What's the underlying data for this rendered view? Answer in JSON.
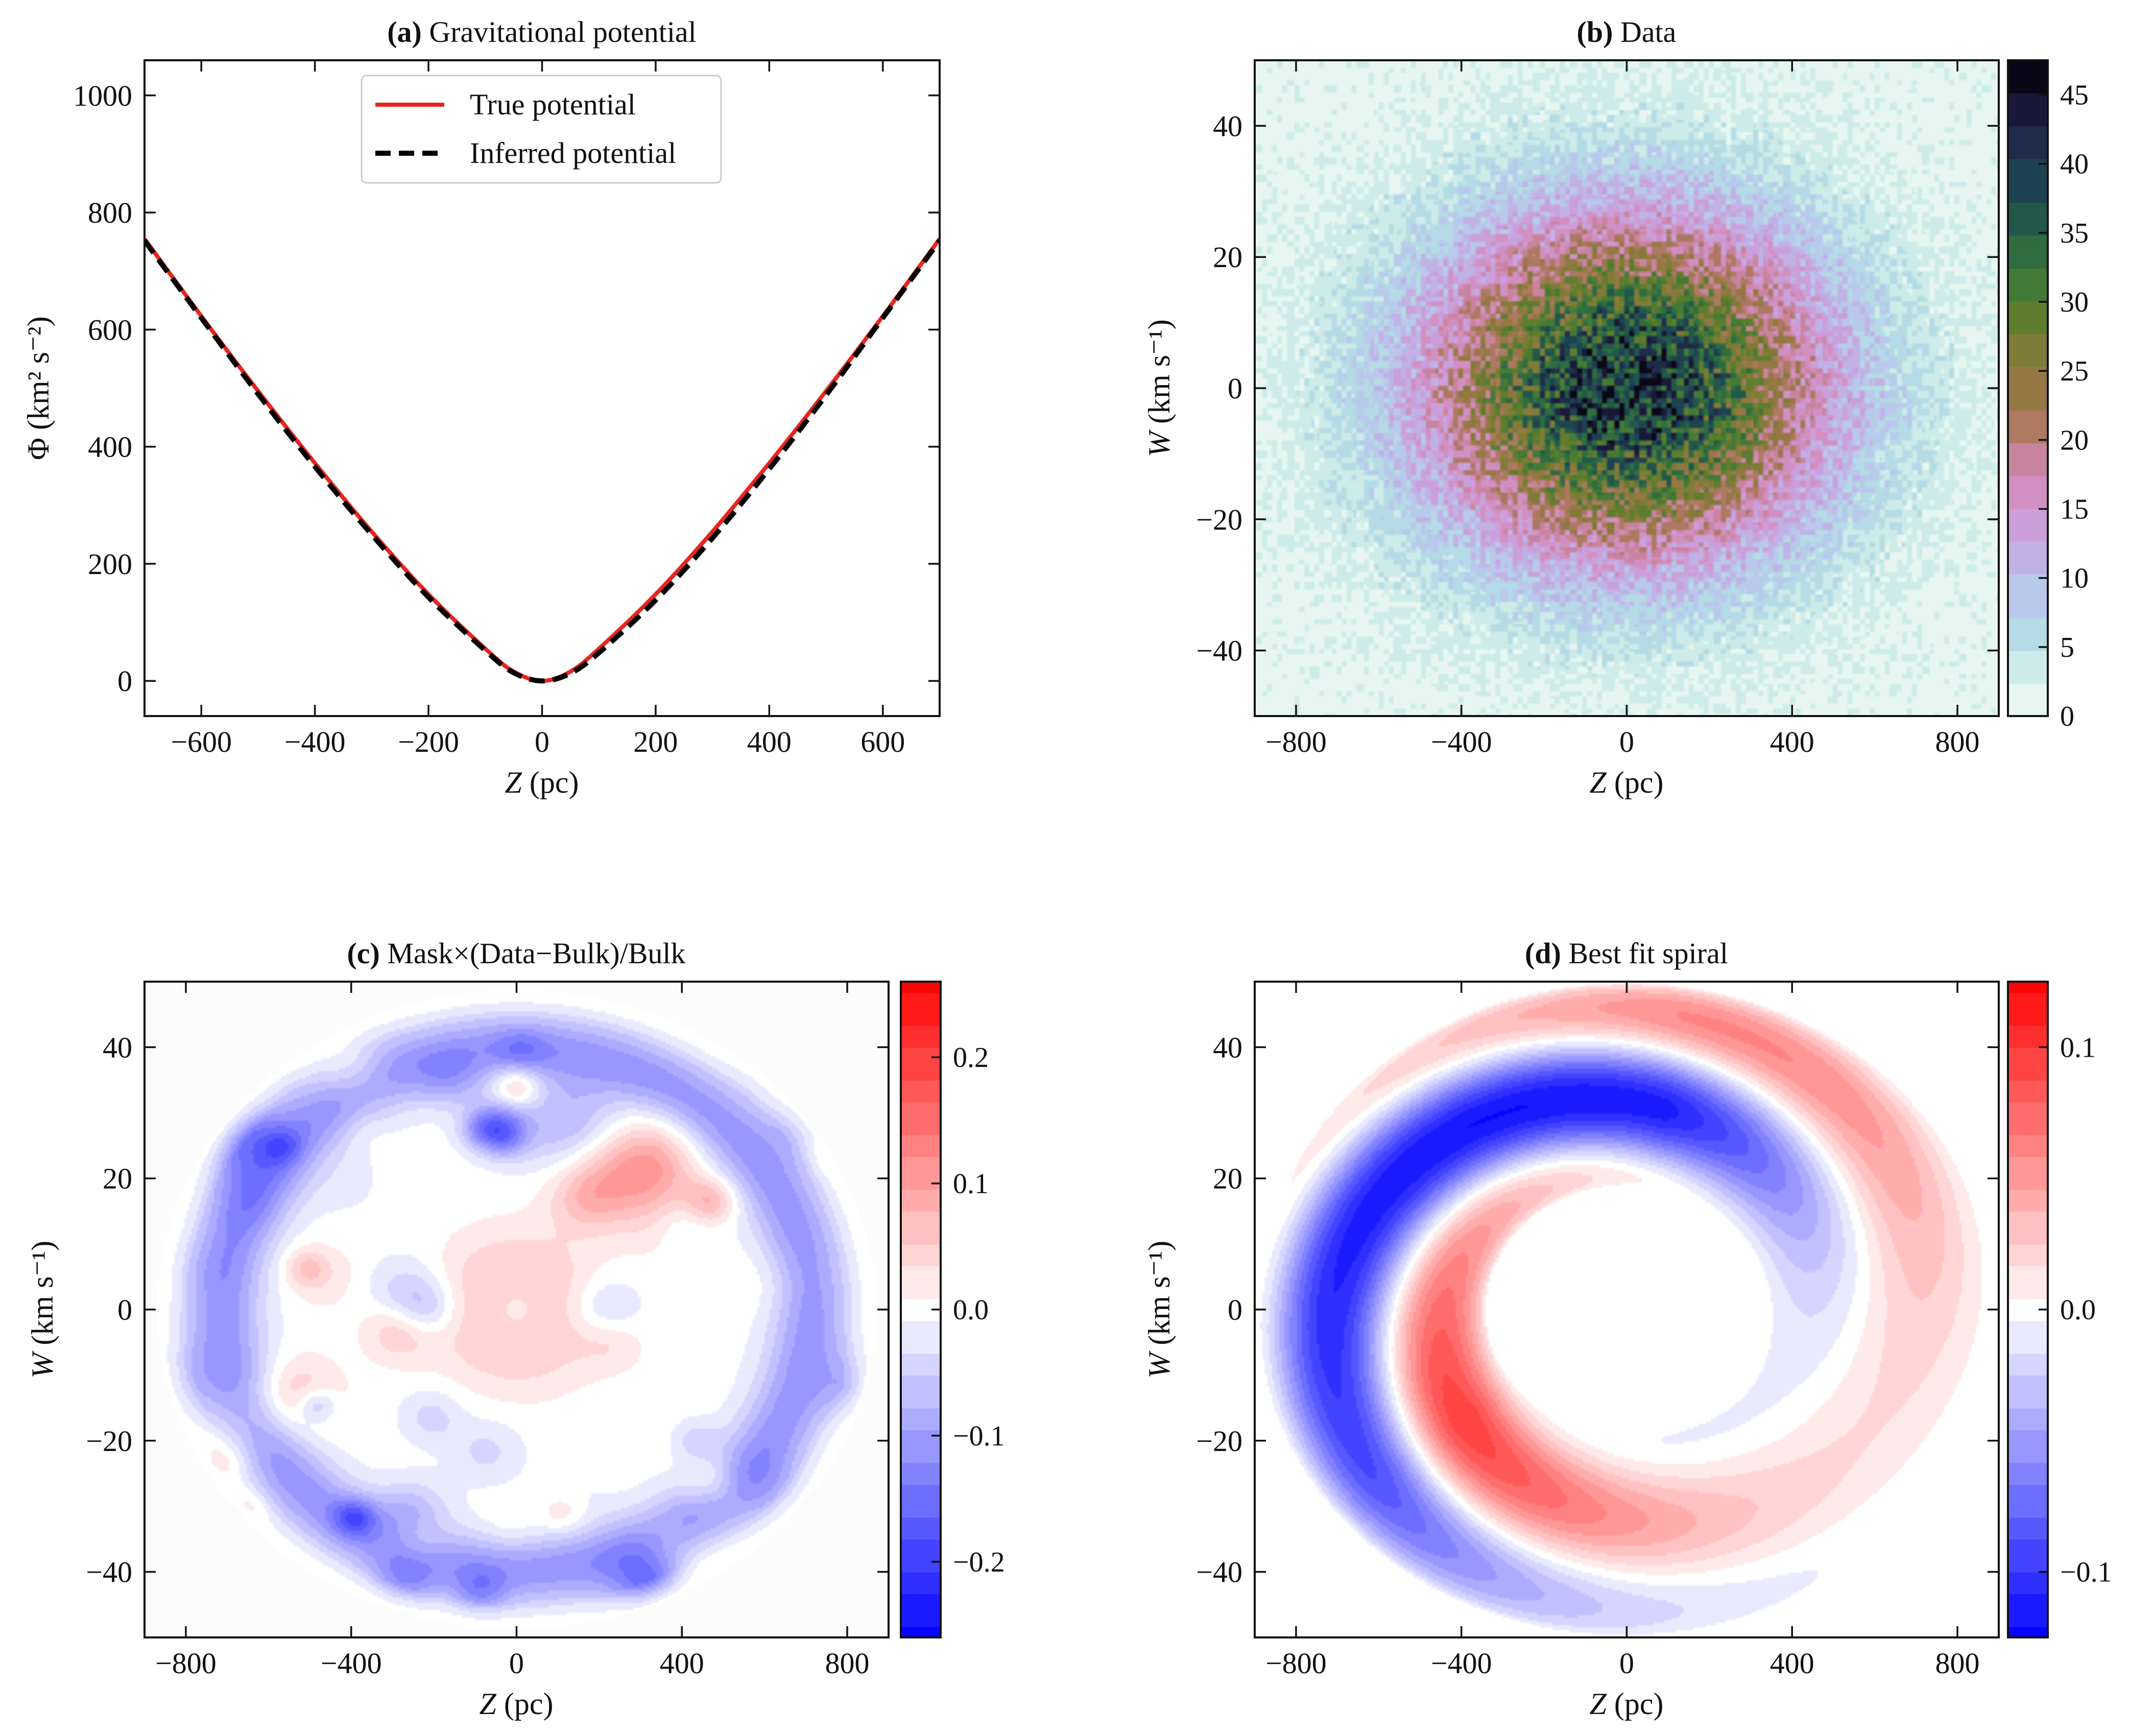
{
  "figure": {
    "description_panels": 4
  },
  "chart_data": [
    {
      "id": "a",
      "type": "line",
      "title_bold": "(a)",
      "title_rest": " Gravitational potential",
      "xlabel_italic": "Z",
      "xlabel_rest": " (pc)",
      "ylabel": "Φ (km² s⁻²)",
      "xlim": [
        -700,
        700
      ],
      "ylim": [
        -60,
        1060
      ],
      "xticks": [
        -600,
        -400,
        -200,
        0,
        200,
        400,
        600
      ],
      "xtick_labels": [
        "−600",
        "−400",
        "−200",
        "0",
        "200",
        "400",
        "600"
      ],
      "yticks": [
        0,
        200,
        400,
        600,
        800,
        1000
      ],
      "ytick_labels": [
        "0",
        "200",
        "400",
        "600",
        "800",
        "1000"
      ],
      "legend_position": "top-center",
      "series": [
        {
          "name": "True potential",
          "color": "#e8251f",
          "style": "solid",
          "x": [
            -700,
            -600,
            -500,
            -400,
            -300,
            -200,
            -100,
            -50,
            0,
            50,
            100,
            200,
            300,
            400,
            500,
            600,
            700
          ],
          "y": [
            755,
            623,
            495,
            372,
            255,
            148,
            55,
            16,
            0,
            16,
            55,
            148,
            255,
            372,
            495,
            623,
            755
          ]
        },
        {
          "name": "Inferred potential",
          "color": "#000000",
          "style": "dashed",
          "x": [
            -700,
            -600,
            -500,
            -400,
            -300,
            -200,
            -100,
            -50,
            0,
            50,
            100,
            200,
            300,
            400,
            500,
            600,
            700
          ],
          "y": [
            752,
            620,
            490,
            366,
            250,
            143,
            52,
            14,
            0,
            13,
            48,
            138,
            244,
            362,
            488,
            620,
            752
          ]
        }
      ]
    },
    {
      "id": "b",
      "type": "heatmap",
      "title_bold": "(b)",
      "title_rest": " Data",
      "xlabel_italic": "Z",
      "xlabel_rest": " (pc)",
      "ylabel_italic": "W",
      "ylabel_rest": " (km s⁻¹)",
      "xlim": [
        -900,
        900
      ],
      "ylim": [
        -50,
        50
      ],
      "xticks": [
        -800,
        -400,
        0,
        400,
        800
      ],
      "xtick_labels": [
        "−800",
        "−400",
        "0",
        "400",
        "800"
      ],
      "yticks": [
        -40,
        -20,
        0,
        20,
        40
      ],
      "ytick_labels": [
        "−40",
        "−20",
        "0",
        "20",
        "40"
      ],
      "model": {
        "kind": "gaussian-counts",
        "peak": 40,
        "sigma_z_pc": 330,
        "sigma_w_kms": 18,
        "noise": 0.12
      },
      "colorbar": {
        "min": 0,
        "max": 47.5,
        "ticks": [
          0,
          5,
          10,
          15,
          20,
          25,
          30,
          35,
          40,
          45
        ],
        "tick_labels": [
          "0",
          "5",
          "10",
          "15",
          "20",
          "25",
          "30",
          "35",
          "40",
          "45"
        ],
        "colors": [
          "#e8f6f1",
          "#cdece9",
          "#b5dbe6",
          "#b9c9ec",
          "#c1b2e6",
          "#cb9fda",
          "#d28fc2",
          "#c8849f",
          "#ad7961",
          "#967845",
          "#7e7c37",
          "#5e7d2f",
          "#437a35",
          "#2f6c40",
          "#22584a",
          "#1d4251",
          "#1e2c4a",
          "#1a1838",
          "#0a0818"
        ]
      }
    },
    {
      "id": "c",
      "type": "heatmap",
      "title_bold": "(c)",
      "title_rest": " Mask×(Data−Bulk)/Bulk",
      "xlabel_italic": "Z",
      "xlabel_rest": " (pc)",
      "ylabel_italic": "W",
      "ylabel_rest": " (km s⁻¹)",
      "xlim": [
        -900,
        900
      ],
      "ylim": [
        -50,
        50
      ],
      "xticks": [
        -800,
        -400,
        0,
        400,
        800
      ],
      "xtick_labels": [
        "−800",
        "−400",
        "0",
        "400",
        "800"
      ],
      "yticks": [
        -40,
        -20,
        0,
        20,
        40
      ],
      "ytick_labels": [
        "−40",
        "−20",
        "0",
        "20",
        "40"
      ],
      "model": {
        "kind": "residual-ring",
        "ring_radius": 0.8,
        "ring_depth": -0.11,
        "mask_radius": 0.98
      },
      "colorbar": {
        "min": -0.26,
        "max": 0.26,
        "ticks": [
          -0.2,
          -0.1,
          0.0,
          0.1,
          0.2
        ],
        "tick_labels": [
          "−0.2",
          "−0.1",
          "0.0",
          "0.1",
          "0.2"
        ],
        "diverging": true
      }
    },
    {
      "id": "d",
      "type": "heatmap",
      "title_bold": "(d)",
      "title_rest": " Best fit spiral",
      "xlabel_italic": "Z",
      "xlabel_rest": " (pc)",
      "ylabel_italic": "W",
      "ylabel_rest": " (km s⁻¹)",
      "xlim": [
        -900,
        900
      ],
      "ylim": [
        -50,
        50
      ],
      "xticks": [
        -800,
        -400,
        0,
        400,
        800
      ],
      "xtick_labels": [
        "−800",
        "−400",
        "0",
        "400",
        "800"
      ],
      "yticks": [
        -40,
        -20,
        0,
        20,
        40
      ],
      "ytick_labels": [
        "−40",
        "−20",
        "0",
        "20",
        "40"
      ],
      "model": {
        "kind": "two-arm-spiral",
        "amplitude": 0.12,
        "r_inner": 0.38,
        "r_outer": 1.0,
        "pitch": 2.6
      },
      "colorbar": {
        "min": -0.125,
        "max": 0.125,
        "ticks": [
          -0.1,
          0.0,
          0.1
        ],
        "tick_labels": [
          "−0.1",
          "0.0",
          "0.1"
        ],
        "diverging": true
      }
    }
  ]
}
